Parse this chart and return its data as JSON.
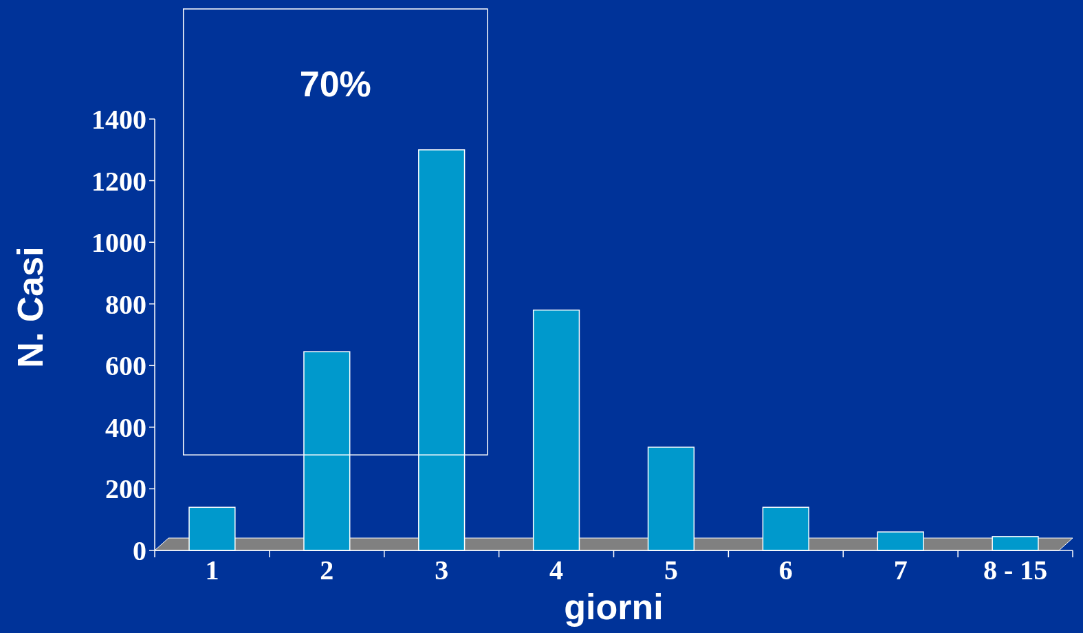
{
  "chart_data": {
    "type": "bar",
    "xlabel": "giorni",
    "ylabel": "N. Casi",
    "categories": [
      "1",
      "2",
      "3",
      "4",
      "5",
      "6",
      "7",
      "8 - 15"
    ],
    "values": [
      140,
      645,
      1300,
      780,
      335,
      140,
      60,
      45
    ],
    "color": "#0099cc",
    "ylim": [
      0,
      1400
    ],
    "yticks": [
      0,
      200,
      400,
      600,
      800,
      1000,
      1200,
      1400
    ],
    "annotations": [
      "70%"
    ],
    "grid": false
  }
}
